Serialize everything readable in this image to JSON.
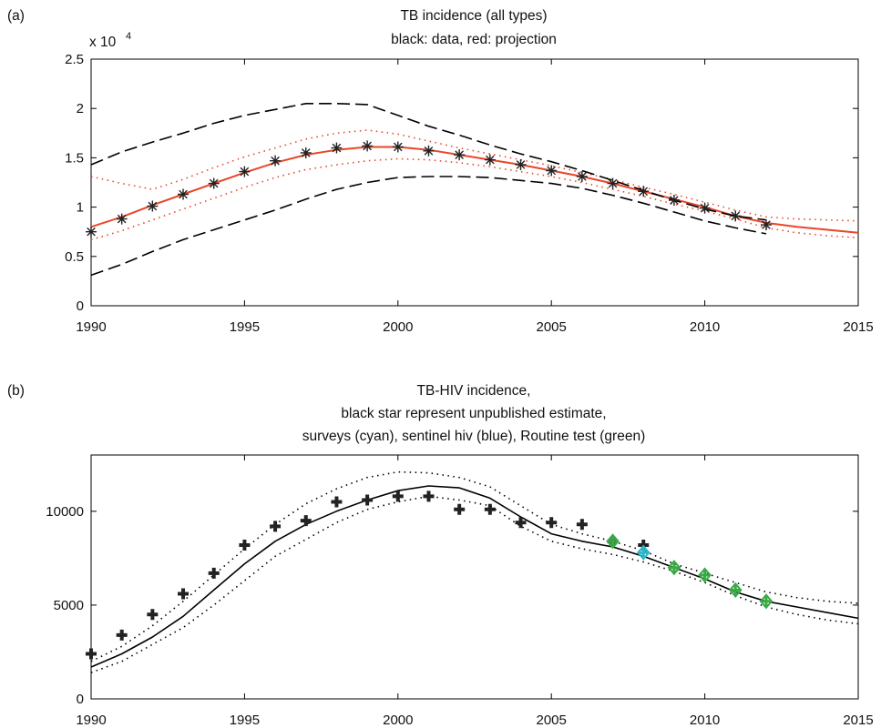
{
  "chart_data": [
    {
      "type": "line",
      "panel_label": "(a)",
      "title": [
        "TB incidence (all types)",
        "black: data, red: projection"
      ],
      "multiplier_label": "x 10",
      "multiplier_exp": "4",
      "xlabel": "",
      "ylabel": "",
      "xlim": [
        1990,
        2015
      ],
      "ylim": [
        0,
        2.5
      ],
      "x_ticks": [
        1990,
        1995,
        2000,
        2005,
        2010,
        2015
      ],
      "y_ticks": [
        0,
        0.5,
        1,
        1.5,
        2,
        2.5
      ],
      "y_tick_labels": [
        "0",
        "0.5",
        "1",
        "1.5",
        "2",
        "2.5"
      ],
      "grid": false,
      "colors": {
        "projection": "#e8462a",
        "data": "#222222",
        "bounds": "#000000"
      },
      "series": [
        {
          "role": "data",
          "style": "stars",
          "x": [
            1990,
            1991,
            1992,
            1993,
            1994,
            1995,
            1996,
            1997,
            1998,
            1999,
            2000,
            2001,
            2002,
            2003,
            2004,
            2005,
            2006,
            2007,
            2008,
            2009,
            2010,
            2011,
            2012
          ],
          "values": [
            0.75,
            0.88,
            1.01,
            1.13,
            1.24,
            1.36,
            1.47,
            1.55,
            1.6,
            1.62,
            1.61,
            1.57,
            1.53,
            1.48,
            1.43,
            1.37,
            1.31,
            1.24,
            1.16,
            1.07,
            0.99,
            0.91,
            0.82
          ]
        },
        {
          "role": "projection",
          "style": "solid-red",
          "x": [
            1990,
            1991,
            1992,
            1993,
            1994,
            1995,
            1996,
            1997,
            1998,
            1999,
            2000,
            2001,
            2002,
            2003,
            2004,
            2005,
            2006,
            2007,
            2008,
            2009,
            2010,
            2011,
            2012,
            2013,
            2014,
            2015
          ],
          "values": [
            0.8,
            0.9,
            1.02,
            1.13,
            1.24,
            1.35,
            1.45,
            1.53,
            1.58,
            1.61,
            1.61,
            1.58,
            1.53,
            1.48,
            1.43,
            1.37,
            1.31,
            1.24,
            1.16,
            1.08,
            1.0,
            0.91,
            0.84,
            0.8,
            0.77,
            0.74
          ]
        },
        {
          "role": "projection-upper",
          "style": "dotted-red",
          "x": [
            1990,
            1991,
            1992,
            1993,
            1994,
            1995,
            1996,
            1997,
            1998,
            1999,
            2000,
            2001,
            2002,
            2003,
            2004,
            2005,
            2006,
            2007,
            2008,
            2009,
            2010,
            2011,
            2012,
            2013,
            2014,
            2015
          ],
          "values": [
            1.31,
            1.24,
            1.18,
            1.28,
            1.4,
            1.51,
            1.6,
            1.69,
            1.75,
            1.78,
            1.74,
            1.67,
            1.6,
            1.54,
            1.48,
            1.42,
            1.35,
            1.28,
            1.2,
            1.13,
            1.05,
            0.97,
            0.9,
            0.88,
            0.87,
            0.86
          ]
        },
        {
          "role": "projection-lower",
          "style": "dotted-red",
          "x": [
            1990,
            1991,
            1992,
            1993,
            1994,
            1995,
            1996,
            1997,
            1998,
            1999,
            2000,
            2001,
            2002,
            2003,
            2004,
            2005,
            2006,
            2007,
            2008,
            2009,
            2010,
            2011,
            2012,
            2013,
            2014,
            2015
          ],
          "values": [
            0.67,
            0.76,
            0.87,
            0.98,
            1.09,
            1.2,
            1.3,
            1.38,
            1.43,
            1.47,
            1.49,
            1.48,
            1.45,
            1.41,
            1.36,
            1.31,
            1.25,
            1.18,
            1.11,
            1.03,
            0.96,
            0.88,
            0.79,
            0.74,
            0.71,
            0.69
          ]
        },
        {
          "role": "data-upper",
          "style": "dashed-black",
          "x": [
            1990,
            1991,
            1992,
            1993,
            1994,
            1995,
            1996,
            1997,
            1998,
            1999,
            2000,
            2001,
            2002,
            2003,
            2004,
            2005,
            2006,
            2007,
            2008,
            2009,
            2010,
            2011,
            2012
          ],
          "values": [
            1.43,
            1.56,
            1.66,
            1.75,
            1.85,
            1.93,
            1.99,
            2.05,
            2.05,
            2.04,
            1.93,
            1.82,
            1.73,
            1.63,
            1.54,
            1.46,
            1.37,
            1.27,
            1.17,
            1.07,
            0.98,
            0.91,
            0.87
          ]
        },
        {
          "role": "data-lower",
          "style": "dashed-black",
          "x": [
            1990,
            1991,
            1992,
            1993,
            1994,
            1995,
            1996,
            1997,
            1998,
            1999,
            2000,
            2001,
            2002,
            2003,
            2004,
            2005,
            2006,
            2007,
            2008,
            2009,
            2010,
            2011,
            2012
          ],
          "values": [
            0.31,
            0.42,
            0.55,
            0.67,
            0.77,
            0.87,
            0.97,
            1.08,
            1.18,
            1.25,
            1.3,
            1.31,
            1.31,
            1.3,
            1.27,
            1.24,
            1.19,
            1.12,
            1.04,
            0.95,
            0.86,
            0.79,
            0.73
          ]
        }
      ]
    },
    {
      "type": "line",
      "panel_label": "(b)",
      "title": [
        "TB-HIV incidence,",
        "black star represent unpublished estimate,",
        "surveys (cyan), sentinel hiv (blue), Routine test (green)"
      ],
      "xlabel": "",
      "ylabel": "",
      "xlim": [
        1990,
        2015
      ],
      "ylim": [
        0,
        13000
      ],
      "x_ticks": [
        1990,
        1995,
        2000,
        2005,
        2010,
        2015
      ],
      "y_ticks": [
        0,
        5000,
        10000
      ],
      "y_tick_labels": [
        "0",
        "5000",
        "10000"
      ],
      "grid": false,
      "colors": {
        "stars": "#222222",
        "surveys": "#2ab7c9",
        "sentinel": "#2255cc",
        "routine": "#3aaa45",
        "model": "#000000"
      },
      "series": [
        {
          "role": "unpublished-estimate",
          "style": "stars",
          "x": [
            1990,
            1991,
            1992,
            1993,
            1994,
            1995,
            1996,
            1997,
            1998,
            1999,
            2000,
            2001,
            2002,
            2003,
            2004,
            2005,
            2006,
            2007,
            2008
          ],
          "values": [
            2400,
            3400,
            4500,
            5600,
            6700,
            8200,
            9200,
            9500,
            10500,
            10600,
            10800,
            10800,
            10100,
            10100,
            9400,
            9400,
            9300,
            8400,
            8200
          ]
        },
        {
          "role": "surveys",
          "style": "diamond-cyan",
          "x": [
            2008
          ],
          "values": [
            7800
          ]
        },
        {
          "role": "routine-test",
          "style": "diamond-green",
          "x": [
            2007,
            2009,
            2010,
            2011,
            2012
          ],
          "values": [
            8400,
            7000,
            6600,
            5800,
            5200
          ]
        },
        {
          "role": "model",
          "style": "solid-black",
          "x": [
            1990,
            1991,
            1992,
            1993,
            1994,
            1995,
            1996,
            1997,
            1998,
            1999,
            2000,
            2001,
            2002,
            2003,
            2004,
            2005,
            2006,
            2007,
            2008,
            2009,
            2010,
            2011,
            2012,
            2013,
            2014,
            2015
          ],
          "values": [
            1700,
            2400,
            3300,
            4400,
            5800,
            7200,
            8400,
            9300,
            10000,
            10600,
            11100,
            11350,
            11250,
            10700,
            9700,
            8800,
            8400,
            8100,
            7600,
            7000,
            6400,
            5700,
            5200,
            4900,
            4600,
            4300
          ]
        },
        {
          "role": "model-upper",
          "style": "dotted-black",
          "x": [
            1990,
            1991,
            1992,
            1993,
            1994,
            1995,
            1996,
            1997,
            1998,
            1999,
            2000,
            2001,
            2002,
            2003,
            2004,
            2005,
            2006,
            2007,
            2008,
            2009,
            2010,
            2011,
            2012,
            2013,
            2014,
            2015
          ],
          "values": [
            2000,
            2800,
            3900,
            5200,
            6600,
            8000,
            9300,
            10400,
            11200,
            11800,
            12100,
            12050,
            11800,
            11300,
            10300,
            9300,
            8800,
            8400,
            7900,
            7200,
            6700,
            6200,
            5700,
            5400,
            5200,
            5100
          ]
        },
        {
          "role": "model-lower",
          "style": "dotted-black",
          "x": [
            1990,
            1991,
            1992,
            1993,
            1994,
            1995,
            1996,
            1997,
            1998,
            1999,
            2000,
            2001,
            2002,
            2003,
            2004,
            2005,
            2006,
            2007,
            2008,
            2009,
            2010,
            2011,
            2012,
            2013,
            2014,
            2015
          ],
          "values": [
            1400,
            2000,
            2900,
            3800,
            5000,
            6300,
            7600,
            8500,
            9400,
            10100,
            10500,
            10800,
            10600,
            10300,
            9200,
            8400,
            8000,
            7700,
            7300,
            6800,
            6200,
            5500,
            4900,
            4500,
            4200,
            4000
          ]
        }
      ]
    }
  ]
}
